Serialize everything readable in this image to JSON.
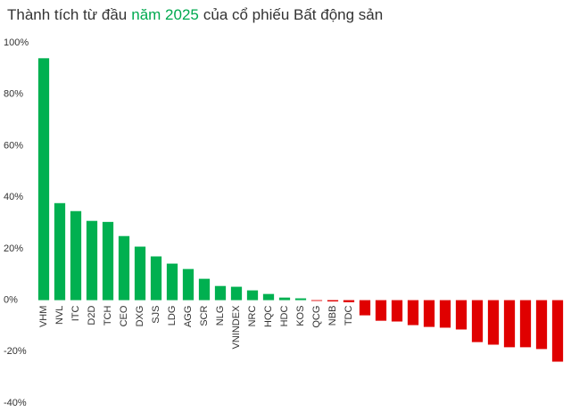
{
  "chart_data": {
    "type": "bar",
    "title": [
      {
        "text": "Thành tích từ đầu",
        "color": "#333333"
      },
      {
        "text": "năm 2025",
        "color": "#00a94f"
      },
      {
        "text": "của cổ phiếu Bất động sản",
        "color": "#333333"
      }
    ],
    "categories": [
      "VHM",
      "NVL",
      "ITC",
      "D2D",
      "TCH",
      "CEO",
      "DXG",
      "SJS",
      "LDG",
      "AGG",
      "SCR",
      "NLG",
      "VNINDEX",
      "NRC",
      "HQC",
      "HDC",
      "KOS",
      "QCG",
      "NBB",
      "TDC",
      null,
      null,
      null,
      null,
      null,
      null,
      null,
      null,
      null,
      null,
      null,
      null,
      null
    ],
    "values": [
      94,
      37.7,
      34.6,
      30.8,
      30.4,
      24.9,
      20.8,
      17,
      14.2,
      12.1,
      8.3,
      5.5,
      5.2,
      3.8,
      2.4,
      1,
      0.7,
      -0.3,
      -0.5,
      -0.8,
      -5.9,
      -8,
      -8.3,
      -9.7,
      -10.4,
      -10.7,
      -11.4,
      -16.3,
      -17.3,
      -18.3,
      -18.3,
      -19,
      -23.9
    ],
    "positive_color": "#00b050",
    "negative_color": "#e00000",
    "ylim": [
      -40,
      100
    ],
    "yticks": [
      {
        "value": -40,
        "label": "-40%"
      },
      {
        "value": -20,
        "label": "-20%"
      },
      {
        "value": 0,
        "label": "0%"
      },
      {
        "value": 20,
        "label": "20%"
      },
      {
        "value": 40,
        "label": "40%"
      },
      {
        "value": 60,
        "label": "60%"
      },
      {
        "value": 80,
        "label": "80%"
      },
      {
        "value": 100,
        "label": "100%"
      }
    ],
    "grid": false
  }
}
